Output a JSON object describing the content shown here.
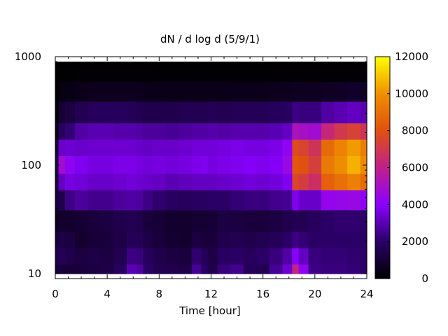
{
  "chart_data": {
    "type": "heatmap",
    "title": "dN / d log d (5/9/1)",
    "xlabel": "Time [hour]",
    "ylabel": "",
    "xlim": [
      0,
      24
    ],
    "ylim": [
      9,
      1000
    ],
    "yscale": "log",
    "x_ticks": [
      0,
      4,
      8,
      12,
      16,
      20,
      24
    ],
    "y_ticks": [
      10,
      100,
      1000
    ],
    "colorbar": {
      "range": [
        0,
        12000
      ],
      "ticks": [
        0,
        2000,
        4000,
        6000,
        8000,
        10000,
        12000
      ],
      "palette": [
        "#000000",
        "#2a0066",
        "#8a00ff",
        "#c0208a",
        "#e05010",
        "#f09000",
        "#ffff00"
      ]
    },
    "time_hours": [
      0,
      0.5,
      1,
      2,
      3,
      4,
      5,
      6,
      6.5,
      7,
      8,
      9,
      10,
      11,
      11.5,
      12,
      13,
      14,
      15,
      16,
      17,
      18,
      18.5,
      19,
      20,
      21,
      22,
      23,
      24
    ],
    "diameter_bins": [
      10,
      15,
      20,
      30,
      50,
      70,
      100,
      150,
      200,
      300,
      500,
      700,
      900
    ],
    "z_profile_rows_from_10": [
      [
        1000,
        1400,
        1200,
        600,
        1200,
        1400,
        1500,
        1100,
        500,
        160,
        30,
        10,
        0
      ],
      [
        1200,
        1700,
        1400,
        900,
        1500,
        3200,
        4800,
        3300,
        1800,
        1000,
        300,
        40,
        0
      ],
      [
        1100,
        1500,
        1300,
        900,
        2400,
        3600,
        4200,
        3400,
        2200,
        1300,
        400,
        60,
        0
      ],
      [
        1200,
        1300,
        900,
        1000,
        2700,
        3500,
        3800,
        3300,
        2800,
        1600,
        500,
        80,
        0
      ],
      [
        1300,
        1400,
        1100,
        1200,
        2500,
        3300,
        3600,
        3400,
        3000,
        1800,
        600,
        90,
        0
      ],
      [
        1400,
        1300,
        1200,
        1300,
        2500,
        3300,
        3600,
        3400,
        3000,
        1800,
        600,
        90,
        0
      ],
      [
        1800,
        1600,
        1400,
        1500,
        2700,
        3400,
        3700,
        3400,
        2900,
        1800,
        600,
        90,
        0
      ],
      [
        3000,
        2400,
        1700,
        1600,
        2800,
        3500,
        3700,
        3400,
        2900,
        1700,
        600,
        90,
        0
      ],
      [
        2800,
        2300,
        1700,
        1500,
        2700,
        3400,
        3600,
        3300,
        2800,
        1600,
        550,
        90,
        0
      ],
      [
        2000,
        1800,
        1400,
        1200,
        2400,
        3300,
        3500,
        3200,
        2700,
        1500,
        500,
        80,
        0
      ],
      [
        1600,
        1500,
        1200,
        1100,
        2100,
        3200,
        3600,
        3300,
        2700,
        1500,
        500,
        70,
        0
      ],
      [
        1500,
        1300,
        1000,
        900,
        1900,
        3000,
        3500,
        3300,
        2600,
        1500,
        480,
        70,
        0
      ],
      [
        1400,
        1200,
        900,
        900,
        1800,
        3100,
        3600,
        3400,
        2700,
        1600,
        500,
        70,
        0
      ],
      [
        2600,
        2100,
        1300,
        1000,
        1900,
        3200,
        3700,
        3500,
        2800,
        1600,
        500,
        70,
        0
      ],
      [
        1900,
        1700,
        1200,
        1000,
        1900,
        3200,
        3800,
        3500,
        2800,
        1600,
        500,
        70,
        0
      ],
      [
        1500,
        1400,
        1200,
        1100,
        2000,
        3200,
        3600,
        3500,
        2900,
        1700,
        500,
        70,
        0
      ],
      [
        2300,
        1900,
        1500,
        1300,
        2000,
        3300,
        3700,
        3600,
        2800,
        1600,
        500,
        70,
        0
      ],
      [
        2500,
        2000,
        1600,
        1300,
        2200,
        3400,
        3800,
        3700,
        2900,
        1700,
        520,
        70,
        0
      ],
      [
        1700,
        1800,
        1500,
        1200,
        2300,
        3500,
        3900,
        3600,
        2900,
        1700,
        520,
        70,
        0
      ],
      [
        1600,
        2000,
        1600,
        1200,
        2300,
        3400,
        3800,
        3600,
        2900,
        1700,
        520,
        70,
        0
      ],
      [
        2600,
        2300,
        1700,
        1300,
        2500,
        3500,
        3900,
        3700,
        3000,
        1800,
        550,
        80,
        0
      ],
      [
        3400,
        2800,
        2000,
        1500,
        2600,
        3800,
        4500,
        4200,
        3200,
        1900,
        600,
        80,
        0
      ],
      [
        6200,
        4000,
        2400,
        1600,
        3800,
        7600,
        8200,
        7800,
        5200,
        2400,
        650,
        80,
        0
      ],
      [
        4200,
        3200,
        2200,
        1600,
        3300,
        7200,
        8000,
        7500,
        5000,
        2300,
        650,
        80,
        0
      ],
      [
        2400,
        2300,
        2000,
        1800,
        3300,
        6600,
        7300,
        6800,
        4800,
        2300,
        650,
        80,
        0
      ],
      [
        2300,
        2200,
        2000,
        2000,
        4300,
        8500,
        9300,
        8800,
        6300,
        2800,
        700,
        90,
        0
      ],
      [
        2300,
        2200,
        2000,
        2100,
        4400,
        9000,
        9900,
        9600,
        7000,
        3000,
        750,
        90,
        0
      ],
      [
        2200,
        2100,
        2000,
        2100,
        4500,
        9500,
        10600,
        10200,
        7400,
        3200,
        800,
        90,
        0
      ],
      [
        2000,
        2000,
        1900,
        2000,
        4200,
        8800,
        9800,
        9400,
        6800,
        3000,
        750,
        90,
        0
      ]
    ]
  }
}
